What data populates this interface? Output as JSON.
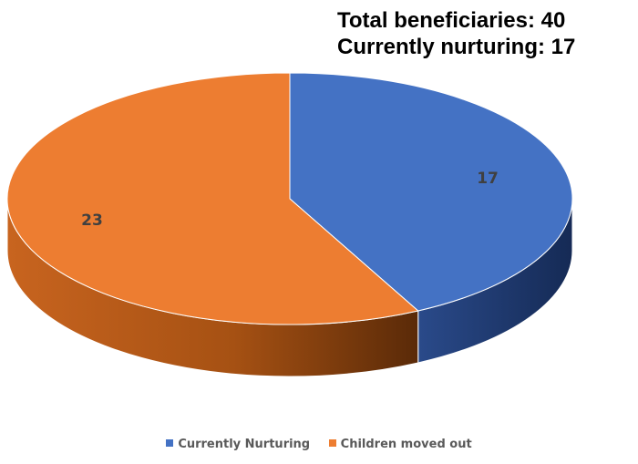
{
  "summary": {
    "total_line": "Total beneficiaries: 40",
    "nurturing_line": "Currently nurturing: 17"
  },
  "chart_data": {
    "type": "pie",
    "title": "",
    "three_d": true,
    "categories": [
      "Currently Nurturing",
      "Children moved out"
    ],
    "values": [
      17,
      23
    ],
    "colors": [
      "#4472C4",
      "#ED7D31"
    ],
    "data_labels": [
      "17",
      "23"
    ],
    "legend_position": "bottom"
  },
  "legend": {
    "items": [
      {
        "label": "Currently Nurturing",
        "color": "#4472C4"
      },
      {
        "label": "Children moved out",
        "color": "#ED7D31"
      }
    ]
  }
}
